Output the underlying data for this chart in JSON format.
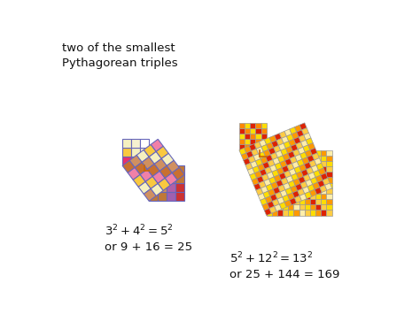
{
  "bg_color": "#ffffff",
  "title_text": "two of the smallest\nPythagorean triples",
  "text1_line1": "$3^2 + 4^2 = 5^2$",
  "text1_line2": "or 9 + 16 = 25",
  "text2_line1": "$5^2 + 12^2 = 13^2$",
  "text2_line2": "or 25 + 144 = 169",
  "edge_color_small": "#6666bb",
  "edge_color_large": "#999999",
  "ra_color": "#cc6600",
  "title_color": "#111111",
  "title_fontsize": 9.5,
  "eq_fontsize": 9.5
}
